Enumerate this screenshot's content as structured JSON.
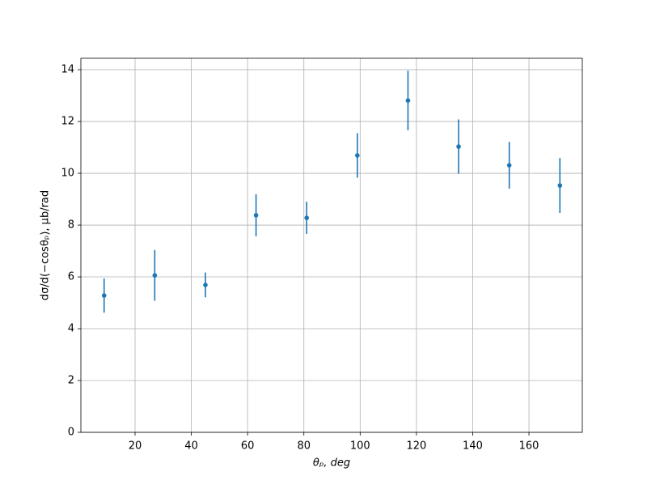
{
  "chart_data": {
    "type": "errorbar",
    "x_label": "θₚ, deg",
    "y_label": "dσ/d(−cosθₚ), μb/rad",
    "x": [
      9,
      27,
      45,
      63,
      81,
      99,
      117,
      135,
      153,
      171
    ],
    "values": [
      5.28,
      6.06,
      5.69,
      8.38,
      8.28,
      10.69,
      12.81,
      11.03,
      10.31,
      9.53
    ],
    "errors": [
      0.66,
      0.98,
      0.48,
      0.81,
      0.62,
      0.86,
      1.15,
      1.05,
      0.9,
      1.06
    ],
    "color": "#1f77b4",
    "xlim": [
      0.74,
      178.96
    ],
    "ylim": [
      0,
      14.44
    ],
    "xticks": [
      20,
      40,
      60,
      80,
      100,
      120,
      140,
      160
    ],
    "yticks": [
      0,
      2,
      4,
      6,
      8,
      10,
      12,
      14
    ],
    "grid": true
  }
}
